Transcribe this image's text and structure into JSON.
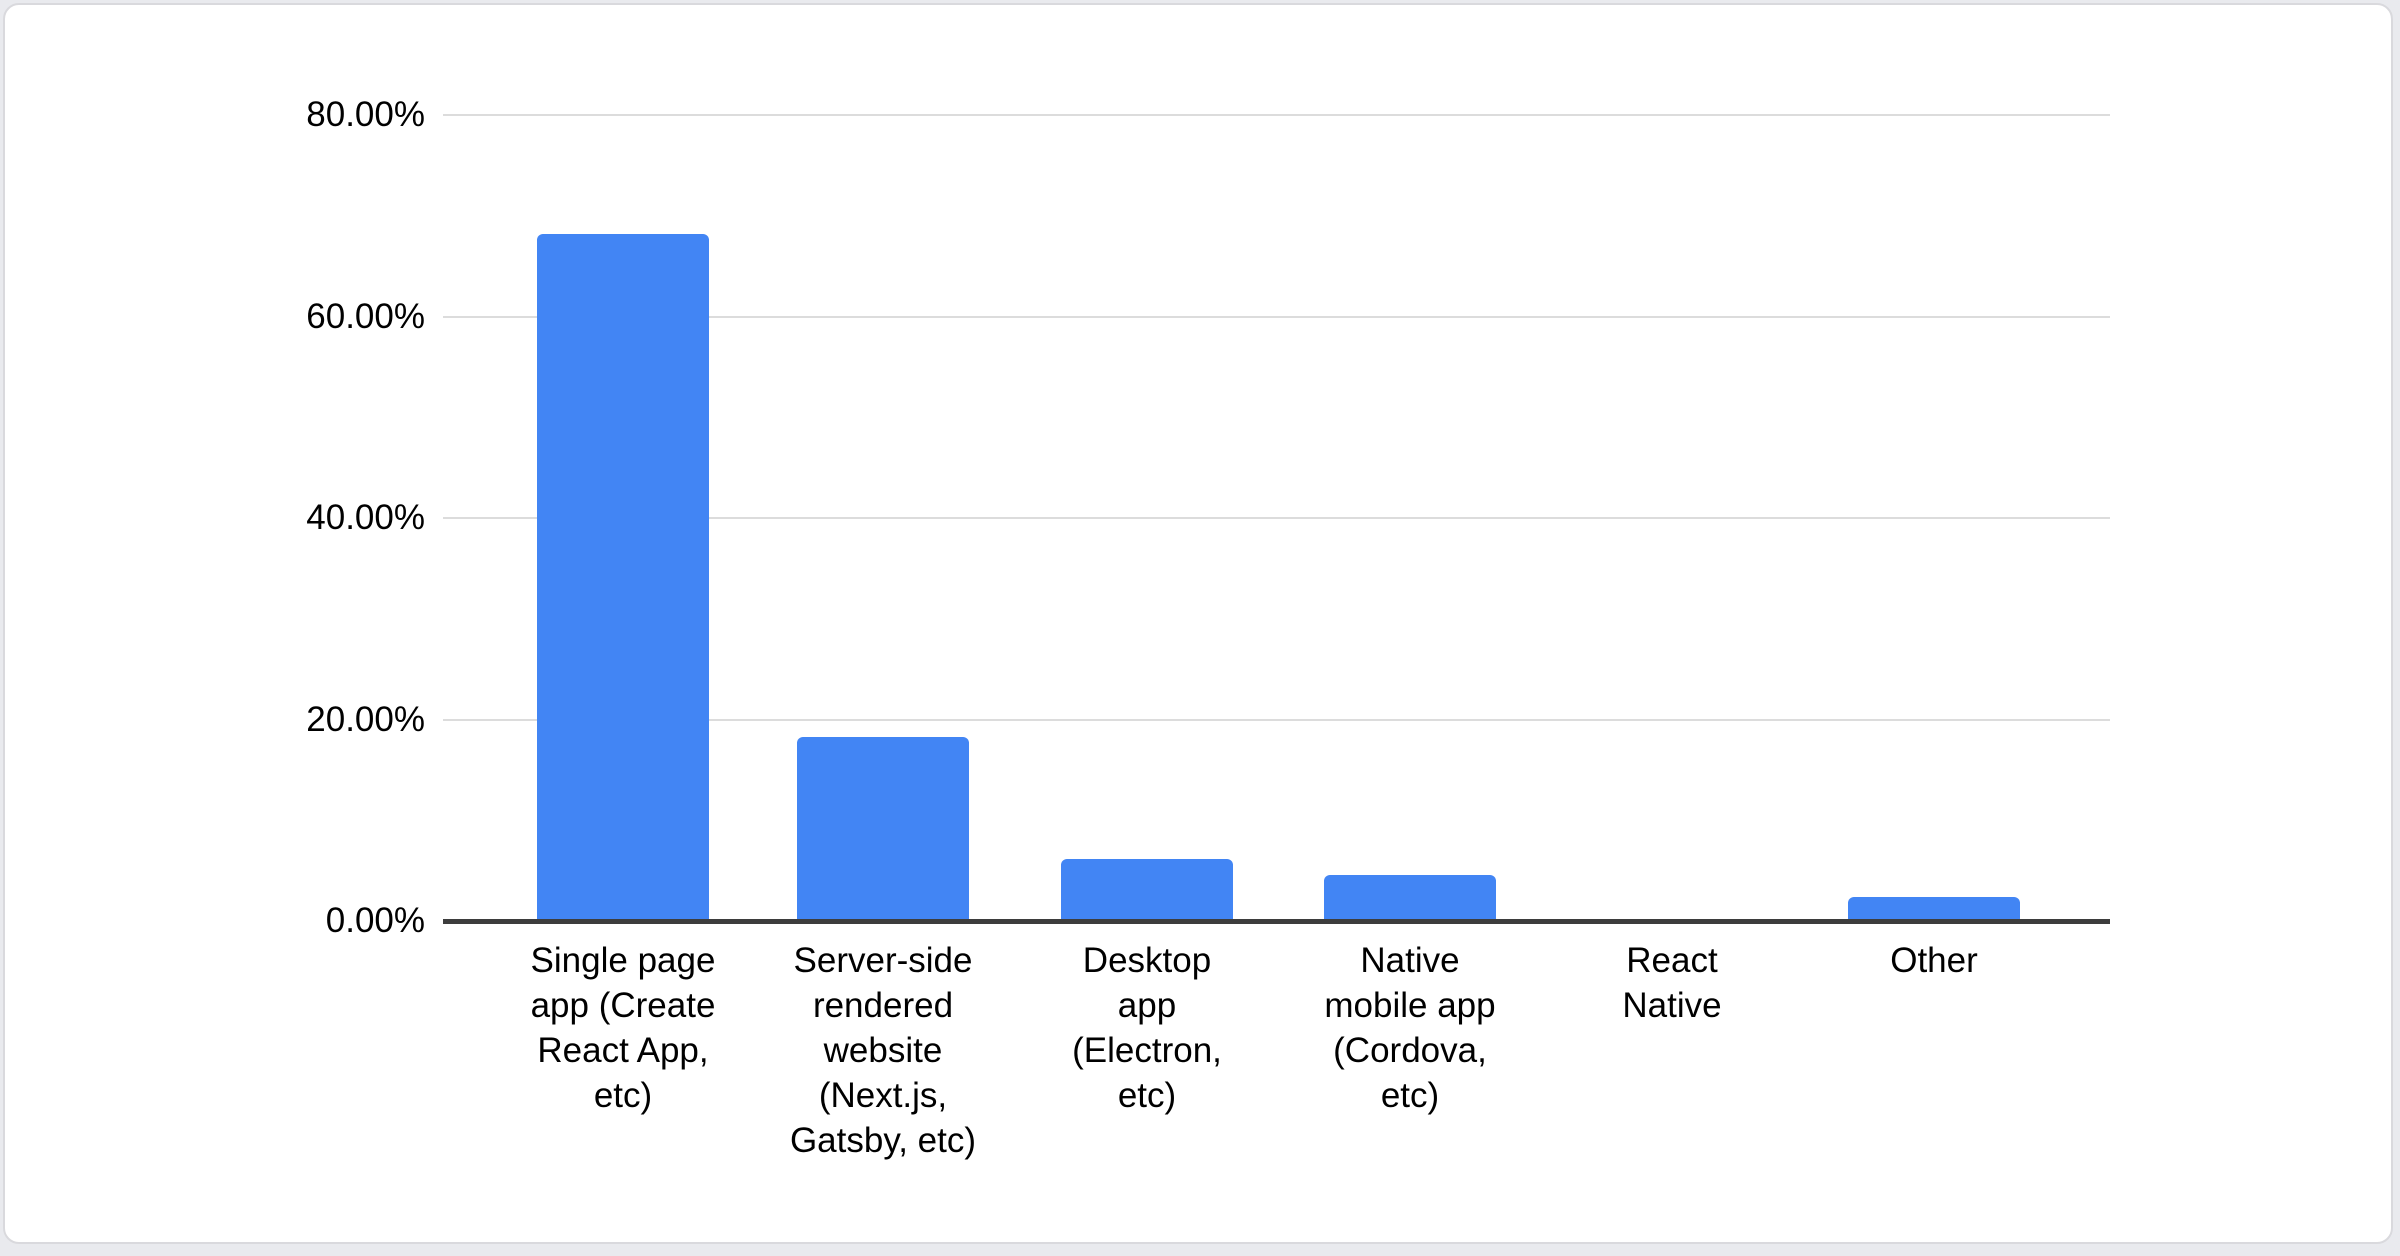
{
  "page": {
    "background_color": "#e9eaee"
  },
  "card": {
    "background_color": "#ffffff",
    "border_color": "#d9d9dd"
  },
  "chart_data": {
    "type": "bar",
    "title": "",
    "xlabel": "",
    "ylabel": "",
    "legend": "none",
    "grid": true,
    "categories": [
      "Single page app (Create React App, etc)",
      "Server-side rendered website (Next.js, Gatsby, etc)",
      "Desktop app (Electron, etc)",
      "Native mobile app (Cordova, etc)",
      "React Native",
      "Other"
    ],
    "category_label_lines": [
      [
        "Single page",
        "app (Create",
        "React App,",
        "etc)"
      ],
      [
        "Server-side",
        "rendered",
        "website",
        "(Next.js,",
        "Gatsby, etc)"
      ],
      [
        "Desktop",
        "app",
        "(Electron,",
        "etc)"
      ],
      [
        "Native",
        "mobile app",
        "(Cordova,",
        "etc)"
      ],
      [
        "React",
        "Native"
      ],
      [
        "Other"
      ]
    ],
    "values": [
      68.2,
      18.3,
      6.2,
      4.6,
      0,
      2.4
    ],
    "value_unit": "%",
    "ylim": [
      0,
      80
    ],
    "yticks": {
      "values": [
        80,
        60,
        40,
        20,
        0
      ],
      "labels": [
        "80.00%",
        "60.00%",
        "40.00%",
        "20.00%",
        "0.00%"
      ]
    },
    "colors": {
      "bar": "#4285f4",
      "gridline": "#dcdcdc",
      "axis_line": "#3d3d3d",
      "label_text": "#000000"
    }
  }
}
